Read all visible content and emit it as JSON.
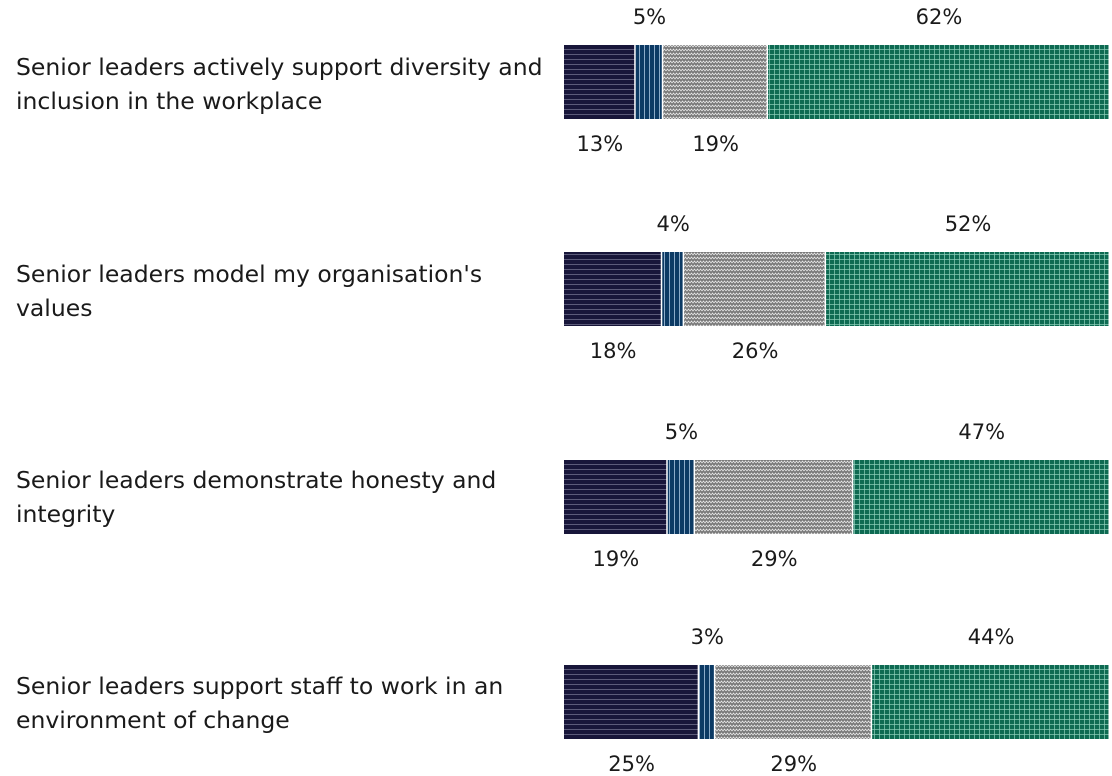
{
  "colors": {
    "seg1": "#18163a",
    "seg2": "#0c3a64",
    "seg3": "#8c8c8c",
    "seg4": "#0e6a52"
  },
  "chart_data": {
    "type": "bar",
    "orientation": "horizontal",
    "stacked": true,
    "categories": [
      "Senior leaders actively support diversity and inclusion in the workplace",
      "Senior leaders model my organisation's values",
      "Senior leaders demonstrate honesty and integrity",
      "Senior leaders support staff to work in an environment of change"
    ],
    "series": [
      {
        "values": [
          13,
          18,
          19,
          25
        ],
        "labels": [
          "13%",
          "18%",
          "19%",
          "25%"
        ]
      },
      {
        "values": [
          5,
          4,
          5,
          3
        ],
        "labels": [
          "5%",
          "4%",
          "5%",
          "3%"
        ]
      },
      {
        "values": [
          19,
          26,
          29,
          29
        ],
        "labels": [
          "19%",
          "26%",
          "29%",
          "29%"
        ]
      },
      {
        "values": [
          62,
          52,
          47,
          44
        ],
        "labels": [
          "62%",
          "52%",
          "47%",
          "44%"
        ]
      }
    ],
    "xlim": [
      0,
      100
    ]
  }
}
